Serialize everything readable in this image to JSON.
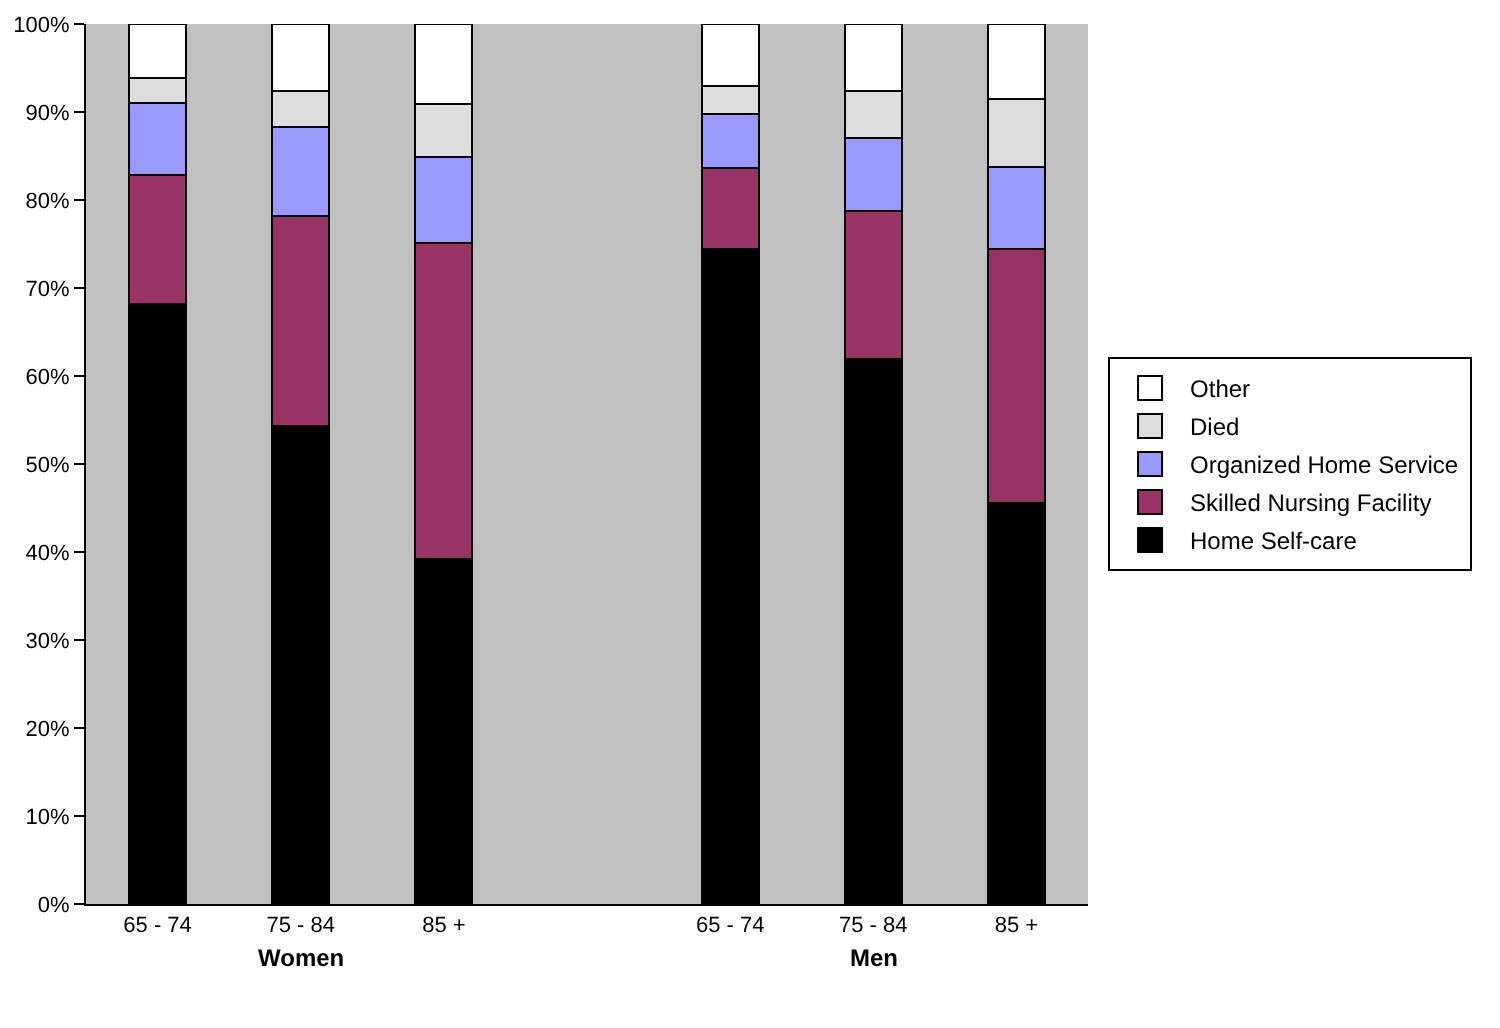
{
  "chart_data": {
    "type": "bar",
    "stacked": true,
    "categories": [
      "65 - 74",
      "75 - 84",
      "85 +",
      null,
      "65 - 74",
      "75 - 84",
      "85 +"
    ],
    "series": [
      {
        "name": "Home Self-care",
        "color": "#000000",
        "values": [
          68.2,
          54.3,
          39.2,
          null,
          74.4,
          61.9,
          45.6
        ]
      },
      {
        "name": "Skilled Nursing Facility",
        "color": "#993366",
        "values": [
          14.6,
          23.9,
          35.9,
          null,
          9.2,
          16.9,
          28.8
        ]
      },
      {
        "name": "Organized Home Service",
        "color": "#9999ff",
        "values": [
          8.2,
          10.1,
          9.8,
          null,
          6.2,
          8.2,
          9.3
        ]
      },
      {
        "name": "Died",
        "color": "#dddddd",
        "values": [
          2.9,
          4.1,
          6.0,
          null,
          3.2,
          5.4,
          7.8
        ]
      },
      {
        "name": "Other",
        "color": "#ffffff",
        "values": [
          6.1,
          7.6,
          9.1,
          null,
          7.0,
          7.6,
          8.5
        ]
      }
    ],
    "ylim": [
      0,
      100
    ],
    "yticks": [
      {
        "value": 0,
        "label": "0%"
      },
      {
        "value": 10,
        "label": "10%"
      },
      {
        "value": 20,
        "label": "20%"
      },
      {
        "value": 30,
        "label": "30%"
      },
      {
        "value": 40,
        "label": "40%"
      },
      {
        "value": 50,
        "label": "50%"
      },
      {
        "value": 60,
        "label": "60%"
      },
      {
        "value": 70,
        "label": "70%"
      },
      {
        "value": 80,
        "label": "80%"
      },
      {
        "value": 90,
        "label": "90%"
      },
      {
        "value": 100,
        "label": "100%"
      }
    ],
    "annotations": [
      "Women",
      "Men"
    ],
    "grid": false,
    "legend": "right"
  }
}
